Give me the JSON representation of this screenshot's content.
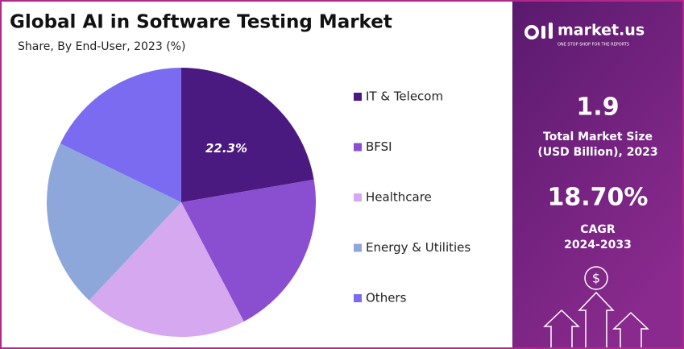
{
  "chart_data": {
    "type": "pie",
    "title": "Global AI in Software Testing Market",
    "subtitle": "Share, By End-User, 2023 (%)",
    "categories": [
      "IT & Telecom",
      "BFSI",
      "Healthcare",
      "Energy & Utilities",
      "Others"
    ],
    "values": [
      22.3,
      20.0,
      19.7,
      20.2,
      17.8
    ],
    "value_labels": [
      "22.3%",
      null,
      null,
      null,
      null
    ],
    "colors": [
      "#4b1a80",
      "#8a4fd1",
      "#d6a8ef",
      "#8ea7db",
      "#7a6bf0"
    ],
    "legend": "right"
  },
  "panel": {
    "brand": "market.us",
    "tagline": "ONE STOP SHOP FOR THE REPORTS",
    "size_value": "1.9",
    "size_label_1": "Total Market Size",
    "size_label_2": "(USD Billion), 2023",
    "cagr_value": "18.70%",
    "cagr_label": "CAGR",
    "cagr_period": "2024-2033",
    "currency": "$"
  }
}
